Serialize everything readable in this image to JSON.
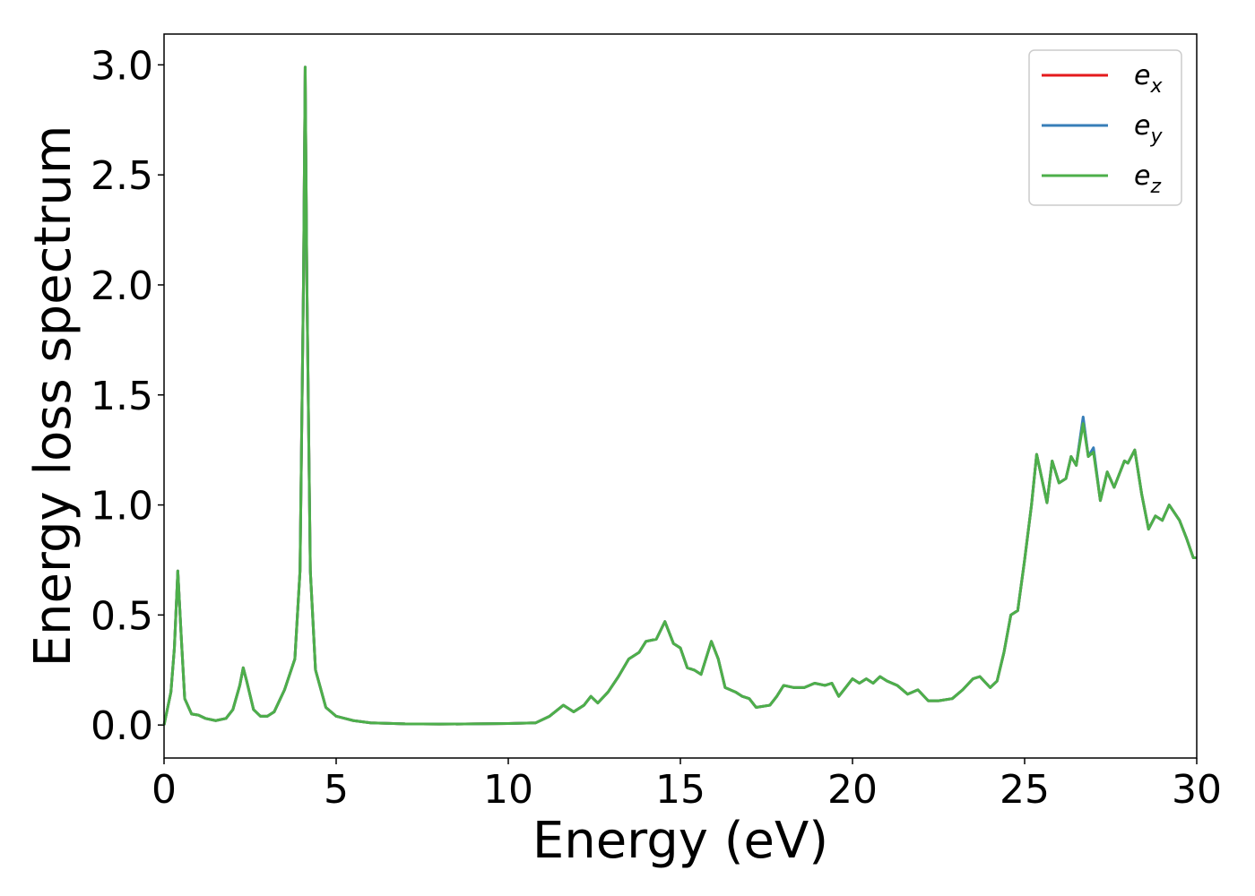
{
  "chart_data": {
    "type": "line",
    "xlabel": "Energy (eV)",
    "ylabel": "Energy loss spectrum",
    "xlim": [
      0,
      30
    ],
    "ylim": [
      -0.15,
      3.14
    ],
    "xticks": [
      0,
      5,
      10,
      15,
      20,
      25,
      30
    ],
    "yticks": [
      {
        "value": 0,
        "label": "0.0"
      },
      {
        "value": 0.5,
        "label": "0.5"
      },
      {
        "value": 1,
        "label": "1.0"
      },
      {
        "value": 1.5,
        "label": "1.5"
      },
      {
        "value": 2,
        "label": "2.0"
      },
      {
        "value": 2.5,
        "label": "2.5"
      },
      {
        "value": 3,
        "label": "3.0"
      }
    ],
    "legend": "upper right",
    "x": [
      0,
      0.2,
      0.3,
      0.4,
      0.5,
      0.6,
      0.8,
      1.0,
      1.2,
      1.5,
      1.8,
      2.0,
      2.2,
      2.3,
      2.4,
      2.6,
      2.8,
      3.0,
      3.2,
      3.5,
      3.8,
      3.95,
      4.05,
      4.1,
      4.15,
      4.25,
      4.4,
      4.7,
      5.0,
      5.5,
      6,
      7,
      8,
      9,
      10,
      10.8,
      11.2,
      11.6,
      11.9,
      12.2,
      12.4,
      12.6,
      12.9,
      13.2,
      13.5,
      13.8,
      14.0,
      14.3,
      14.55,
      14.8,
      15.0,
      15.2,
      15.4,
      15.6,
      15.9,
      16.1,
      16.3,
      16.6,
      16.8,
      17.0,
      17.2,
      17.6,
      17.8,
      18.0,
      18.3,
      18.6,
      18.9,
      19.2,
      19.4,
      19.6,
      19.8,
      20.0,
      20.2,
      20.4,
      20.6,
      20.8,
      21.0,
      21.3,
      21.6,
      21.9,
      22.2,
      22.5,
      22.9,
      23.2,
      23.5,
      23.7,
      24.0,
      24.2,
      24.4,
      24.6,
      24.8,
      25.0,
      25.2,
      25.35,
      25.5,
      25.65,
      25.8,
      26.0,
      26.2,
      26.35,
      26.5,
      26.7,
      26.85,
      27.0,
      27.2,
      27.4,
      27.6,
      27.9,
      28.0,
      28.2,
      28.4,
      28.6,
      28.8,
      29.0,
      29.2,
      29.5,
      29.7,
      29.9,
      30
    ],
    "series": [
      {
        "name": "ex",
        "color": "#e41a1c",
        "values": [
          0,
          0.15,
          0.35,
          0.7,
          0.4,
          0.12,
          0.05,
          0.045,
          0.03,
          0.02,
          0.03,
          0.07,
          0.18,
          0.26,
          0.2,
          0.07,
          0.04,
          0.04,
          0.06,
          0.16,
          0.3,
          0.7,
          2.0,
          2.99,
          2.0,
          0.7,
          0.25,
          0.08,
          0.04,
          0.02,
          0.01,
          0.005,
          0.004,
          0.005,
          0.007,
          0.01,
          0.04,
          0.09,
          0.06,
          0.09,
          0.13,
          0.1,
          0.15,
          0.22,
          0.3,
          0.33,
          0.38,
          0.39,
          0.47,
          0.37,
          0.35,
          0.26,
          0.25,
          0.23,
          0.38,
          0.3,
          0.17,
          0.15,
          0.13,
          0.12,
          0.08,
          0.09,
          0.13,
          0.18,
          0.17,
          0.17,
          0.19,
          0.18,
          0.19,
          0.13,
          0.17,
          0.21,
          0.19,
          0.21,
          0.19,
          0.22,
          0.2,
          0.18,
          0.14,
          0.16,
          0.11,
          0.11,
          0.12,
          0.16,
          0.21,
          0.22,
          0.17,
          0.2,
          0.33,
          0.5,
          0.52,
          0.75,
          1.0,
          1.23,
          1.12,
          1.01,
          1.2,
          1.1,
          1.12,
          1.22,
          1.18,
          1.39,
          1.22,
          1.25,
          1.02,
          1.15,
          1.08,
          1.2,
          1.19,
          1.25,
          1.05,
          0.89,
          0.95,
          0.93,
          1.0,
          0.93,
          0.85,
          0.76,
          0.76
        ]
      },
      {
        "name": "ey",
        "color": "#377eb8",
        "values": [
          0,
          0.15,
          0.35,
          0.7,
          0.4,
          0.12,
          0.05,
          0.045,
          0.03,
          0.02,
          0.03,
          0.07,
          0.18,
          0.26,
          0.2,
          0.07,
          0.04,
          0.04,
          0.06,
          0.16,
          0.3,
          0.7,
          2.0,
          2.99,
          2.0,
          0.7,
          0.25,
          0.08,
          0.04,
          0.02,
          0.01,
          0.005,
          0.004,
          0.005,
          0.007,
          0.01,
          0.04,
          0.09,
          0.06,
          0.09,
          0.13,
          0.1,
          0.15,
          0.22,
          0.3,
          0.33,
          0.38,
          0.39,
          0.47,
          0.37,
          0.35,
          0.26,
          0.25,
          0.23,
          0.38,
          0.3,
          0.17,
          0.15,
          0.13,
          0.12,
          0.08,
          0.09,
          0.13,
          0.18,
          0.17,
          0.17,
          0.19,
          0.18,
          0.19,
          0.13,
          0.17,
          0.21,
          0.19,
          0.21,
          0.19,
          0.22,
          0.2,
          0.18,
          0.14,
          0.16,
          0.11,
          0.11,
          0.12,
          0.16,
          0.21,
          0.22,
          0.17,
          0.2,
          0.33,
          0.5,
          0.52,
          0.75,
          1.0,
          1.23,
          1.12,
          1.01,
          1.2,
          1.1,
          1.12,
          1.22,
          1.18,
          1.4,
          1.22,
          1.26,
          1.02,
          1.15,
          1.08,
          1.2,
          1.19,
          1.25,
          1.05,
          0.89,
          0.95,
          0.93,
          1.0,
          0.93,
          0.85,
          0.76,
          0.76
        ]
      },
      {
        "name": "ez",
        "color": "#4daf4a",
        "values": [
          0,
          0.15,
          0.35,
          0.7,
          0.4,
          0.12,
          0.05,
          0.045,
          0.03,
          0.02,
          0.03,
          0.07,
          0.18,
          0.26,
          0.2,
          0.07,
          0.04,
          0.04,
          0.06,
          0.16,
          0.3,
          0.7,
          2.0,
          2.99,
          2.0,
          0.7,
          0.25,
          0.08,
          0.04,
          0.02,
          0.01,
          0.005,
          0.004,
          0.005,
          0.007,
          0.01,
          0.04,
          0.09,
          0.06,
          0.09,
          0.13,
          0.1,
          0.15,
          0.22,
          0.3,
          0.33,
          0.38,
          0.39,
          0.47,
          0.37,
          0.35,
          0.26,
          0.25,
          0.23,
          0.38,
          0.3,
          0.17,
          0.15,
          0.13,
          0.12,
          0.08,
          0.09,
          0.13,
          0.18,
          0.17,
          0.17,
          0.19,
          0.18,
          0.19,
          0.13,
          0.17,
          0.21,
          0.19,
          0.21,
          0.19,
          0.22,
          0.2,
          0.18,
          0.14,
          0.16,
          0.11,
          0.11,
          0.12,
          0.16,
          0.21,
          0.22,
          0.17,
          0.2,
          0.33,
          0.5,
          0.52,
          0.75,
          1.0,
          1.23,
          1.12,
          1.01,
          1.2,
          1.1,
          1.12,
          1.22,
          1.18,
          1.37,
          1.22,
          1.24,
          1.02,
          1.15,
          1.08,
          1.2,
          1.19,
          1.25,
          1.05,
          0.89,
          0.95,
          0.93,
          1.0,
          0.93,
          0.85,
          0.76,
          0.76
        ]
      }
    ]
  }
}
